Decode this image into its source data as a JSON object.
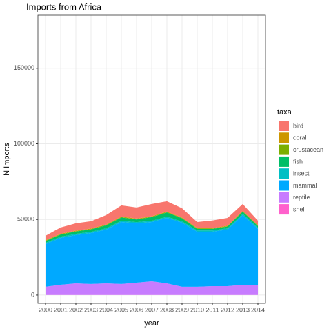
{
  "chart_data": {
    "type": "stacked_area",
    "title": "Imports from Africa",
    "x_label": "year",
    "y_label": "N Imports",
    "legend_title": "taxa",
    "x": [
      2000,
      2001,
      2002,
      2003,
      2004,
      2005,
      2006,
      2007,
      2008,
      2009,
      2010,
      2011,
      2012,
      2013,
      2014
    ],
    "series": [
      {
        "name": "bird",
        "color": "#F8766D",
        "values": [
          2900,
          4100,
          4800,
          4800,
          6200,
          7400,
          7300,
          8100,
          6800,
          6100,
          4000,
          5000,
          5100,
          4500,
          3000
        ]
      },
      {
        "name": "coral",
        "color": "#CD9600",
        "values": [
          300,
          300,
          300,
          300,
          300,
          300,
          300,
          300,
          300,
          300,
          300,
          300,
          300,
          300,
          300
        ]
      },
      {
        "name": "crustacean",
        "color": "#7CAE00",
        "values": [
          300,
          300,
          300,
          300,
          300,
          300,
          300,
          300,
          300,
          300,
          300,
          300,
          300,
          300,
          300
        ]
      },
      {
        "name": "fish",
        "color": "#00BE67",
        "values": [
          1200,
          1400,
          1500,
          1600,
          2000,
          2200,
          1800,
          2400,
          2800,
          2000,
          1000,
          1000,
          1200,
          1400,
          1000
        ]
      },
      {
        "name": "insect",
        "color": "#00BFC4",
        "values": [
          800,
          800,
          800,
          800,
          800,
          800,
          800,
          800,
          800,
          800,
          800,
          800,
          800,
          800,
          800
        ]
      },
      {
        "name": "mammal",
        "color": "#00A9FF",
        "values": [
          28200,
          31000,
          32000,
          33700,
          35600,
          41000,
          39200,
          39200,
          43300,
          42400,
          36400,
          36000,
          37400,
          46100,
          37000
        ]
      },
      {
        "name": "reptile",
        "color": "#C77CFF",
        "values": [
          5400,
          6700,
          7600,
          7200,
          7600,
          7200,
          8100,
          9000,
          7600,
          5400,
          5400,
          5800,
          5800,
          6700,
          6700
        ]
      },
      {
        "name": "shell",
        "color": "#FF61CC",
        "values": [
          100,
          100,
          100,
          100,
          100,
          100,
          100,
          100,
          100,
          100,
          100,
          100,
          100,
          100,
          100
        ]
      }
    ],
    "xlim": [
      1999.5,
      2014.5
    ],
    "xticks": [
      2000,
      2001,
      2002,
      2003,
      2004,
      2005,
      2006,
      2007,
      2008,
      2009,
      2010,
      2011,
      2012,
      2013,
      2014
    ],
    "ylim": [
      -5500,
      185000
    ],
    "yticks": [
      0,
      50000,
      100000,
      150000
    ],
    "grid": true
  }
}
